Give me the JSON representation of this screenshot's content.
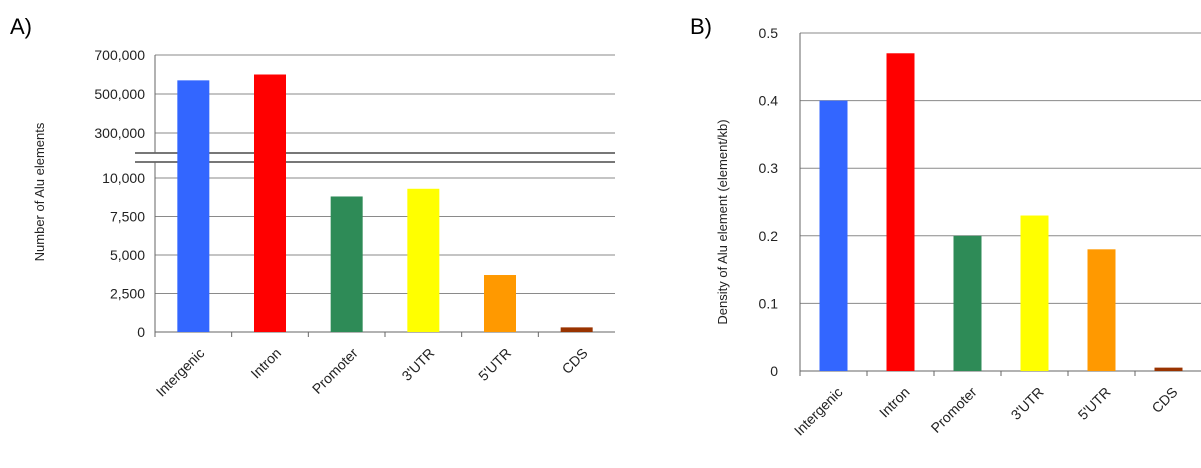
{
  "chart_data": [
    {
      "type": "bar",
      "panel_label": "A)",
      "categories": [
        "Intergenic",
        "Intron",
        "Promoter",
        "3'UTR",
        "5'UTR",
        "CDS"
      ],
      "values": [
        570000,
        600000,
        8800,
        9300,
        3700,
        300
      ],
      "colors": [
        "#3366ff",
        "#ff0000",
        "#2e8b57",
        "#ffff00",
        "#ff9900",
        "#993300"
      ],
      "ylabel": "Number of Alu elements",
      "xlabel": "",
      "axis_break": true,
      "ylim_lower": [
        0,
        10000
      ],
      "ylim_upper": [
        300000,
        700000
      ],
      "yticks_lower": [
        "0",
        "2,500",
        "5,000",
        "7,500",
        "10,000"
      ],
      "yticks_upper": [
        "300,000",
        "500,000",
        "700,000"
      ],
      "grid": true
    },
    {
      "type": "bar",
      "panel_label": "B)",
      "categories": [
        "Intergenic",
        "Intron",
        "Promoter",
        "3'UTR",
        "5'UTR",
        "CDS"
      ],
      "values": [
        0.4,
        0.47,
        0.2,
        0.23,
        0.18,
        0.005
      ],
      "colors": [
        "#3366ff",
        "#ff0000",
        "#2e8b57",
        "#ffff00",
        "#ff9900",
        "#993300"
      ],
      "ylabel": "Density of Alu element (element/kb)",
      "xlabel": "",
      "ylim": [
        0,
        0.5
      ],
      "yticks": [
        "0",
        "0.1",
        "0.2",
        "0.3",
        "0.4",
        "0.5"
      ],
      "grid": true
    }
  ]
}
